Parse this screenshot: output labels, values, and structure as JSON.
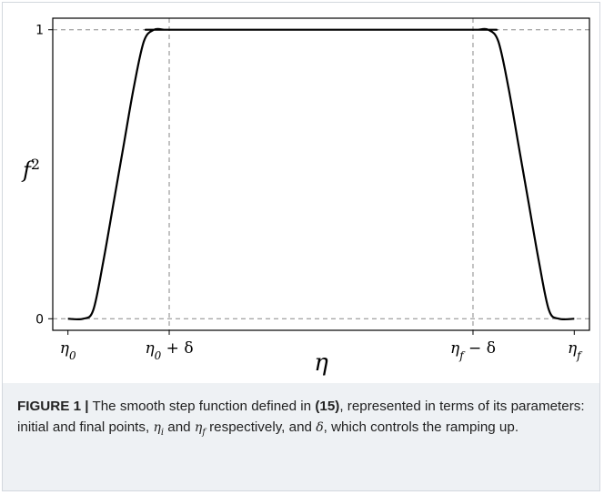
{
  "chart_data": {
    "type": "line",
    "ylabel_base": "f",
    "ylabel_sup": "2",
    "xlabel": "η",
    "yticks": [
      {
        "value": 0,
        "label": "0"
      },
      {
        "value": 1,
        "label": "1"
      }
    ],
    "xticks": [
      {
        "value": 0,
        "base": "η",
        "sub": "0",
        "suffix": ""
      },
      {
        "value": 0.2,
        "base": "η",
        "sub": "0",
        "suffix": " + δ"
      },
      {
        "value": 0.8,
        "base": "η",
        "sub": "f",
        "suffix": " − δ"
      },
      {
        "value": 1,
        "base": "η",
        "sub": "f",
        "suffix": ""
      }
    ],
    "series": [
      {
        "x": [
          0.0,
          0.03,
          0.05,
          0.07,
          0.09,
          0.11,
          0.13,
          0.15,
          0.17,
          0.19,
          0.2,
          0.8,
          0.81,
          0.83,
          0.85,
          0.87,
          0.89,
          0.91,
          0.93,
          0.95,
          0.97,
          1.0
        ],
        "y": [
          0.0,
          0.0,
          0.03,
          0.2,
          0.4,
          0.6,
          0.8,
          0.96,
          1.0,
          1.0,
          1.0,
          1.0,
          1.0,
          1.0,
          0.96,
          0.8,
          0.6,
          0.4,
          0.2,
          0.03,
          0.0,
          0.0
        ],
        "color": "#000000"
      }
    ],
    "xlim": [
      -0.03,
      1.03
    ],
    "ylim": [
      -0.04,
      1.04
    ],
    "grid": "dashed reference lines at y=0, y=1, x=η0+δ, x=ηf−δ"
  },
  "caption": {
    "label": "FIGURE 1 |",
    "text_a": " The smooth step function defined in ",
    "ref": "(15)",
    "text_b": ", represented in terms of its parameters: initial and final points, ",
    "eta_i_base": "η",
    "eta_i_sub": "i",
    "text_c": " and ",
    "eta_f_base": "η",
    "eta_f_sub": "f",
    "text_d": " respectively, and ",
    "delta": "δ",
    "text_e": ", which controls the ramping up."
  }
}
